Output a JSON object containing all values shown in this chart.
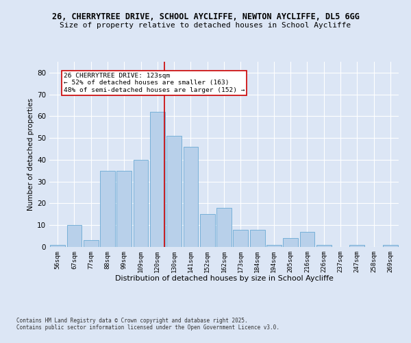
{
  "title_line1": "26, CHERRYTREE DRIVE, SCHOOL AYCLIFFE, NEWTON AYCLIFFE, DL5 6GG",
  "title_line2": "Size of property relative to detached houses in School Aycliffe",
  "xlabel": "Distribution of detached houses by size in School Aycliffe",
  "ylabel": "Number of detached properties",
  "categories": [
    "56sqm",
    "67sqm",
    "77sqm",
    "88sqm",
    "99sqm",
    "109sqm",
    "120sqm",
    "130sqm",
    "141sqm",
    "152sqm",
    "162sqm",
    "173sqm",
    "184sqm",
    "194sqm",
    "205sqm",
    "216sqm",
    "226sqm",
    "237sqm",
    "247sqm",
    "258sqm",
    "269sqm"
  ],
  "values": [
    1,
    10,
    3,
    35,
    35,
    40,
    62,
    51,
    46,
    15,
    18,
    8,
    8,
    1,
    4,
    7,
    1,
    0,
    1,
    0,
    1
  ],
  "bar_color": "#b8d0ea",
  "bar_edge_color": "#6aaad4",
  "bg_color": "#dce6f5",
  "grid_color": "#ffffff",
  "annotation_title": "26 CHERRYTREE DRIVE: 123sqm",
  "annotation_line2": "← 52% of detached houses are smaller (163)",
  "annotation_line3": "48% of semi-detached houses are larger (152) →",
  "annotation_box_color": "#ffffff",
  "annotation_box_edge": "#cc0000",
  "property_line_color": "#cc0000",
  "footnote_line1": "Contains HM Land Registry data © Crown copyright and database right 2025.",
  "footnote_line2": "Contains public sector information licensed under the Open Government Licence v3.0.",
  "ylim": [
    0,
    85
  ],
  "yticks": [
    0,
    10,
    20,
    30,
    40,
    50,
    60,
    70,
    80
  ]
}
